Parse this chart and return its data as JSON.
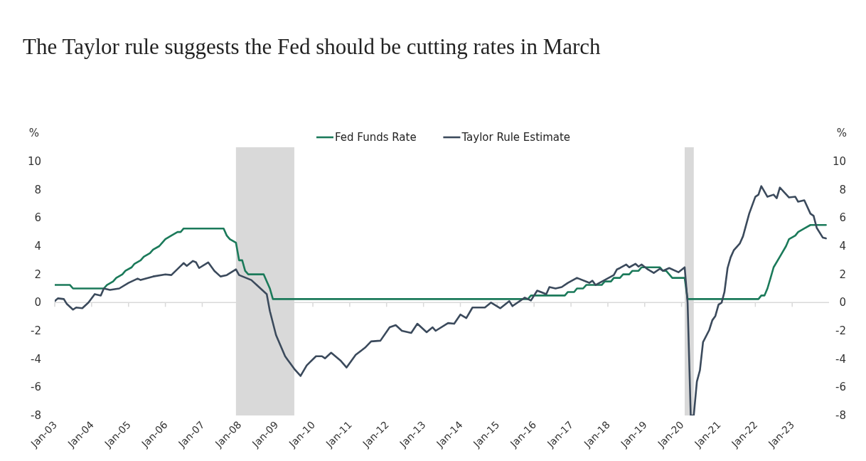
{
  "chart_data": {
    "type": "line",
    "title": "The Taylor rule suggests the Fed should be cutting rates in March",
    "ylabel": "%",
    "y2label": "%",
    "legend": "top",
    "line_style": "solid",
    "marker": "none",
    "grid": false,
    "xlim": [
      "2003-01",
      "2024-01"
    ],
    "xticks": [
      {
        "value": "2003-01",
        "label": "Jan-03"
      },
      {
        "value": "2004-01",
        "label": "Jan-04"
      },
      {
        "value": "2005-01",
        "label": "Jan-05"
      },
      {
        "value": "2006-01",
        "label": "Jan-06"
      },
      {
        "value": "2007-01",
        "label": "Jan-07"
      },
      {
        "value": "2008-01",
        "label": "Jan-08"
      },
      {
        "value": "2009-01",
        "label": "Jan-09"
      },
      {
        "value": "2010-01",
        "label": "Jan-10"
      },
      {
        "value": "2011-01",
        "label": "Jan-11"
      },
      {
        "value": "2012-01",
        "label": "Jan-12"
      },
      {
        "value": "2013-01",
        "label": "Jan-13"
      },
      {
        "value": "2014-01",
        "label": "Jan-14"
      },
      {
        "value": "2015-01",
        "label": "Jan-15"
      },
      {
        "value": "2016-01",
        "label": "Jan-16"
      },
      {
        "value": "2017-01",
        "label": "Jan-17"
      },
      {
        "value": "2018-01",
        "label": "Jan-18"
      },
      {
        "value": "2019-01",
        "label": "Jan-19"
      },
      {
        "value": "2020-01",
        "label": "Jan-20"
      },
      {
        "value": "2021-01",
        "label": "Jan-21"
      },
      {
        "value": "2022-01",
        "label": "Jan-22"
      },
      {
        "value": "2023-01",
        "label": "Jan-23"
      }
    ],
    "ylim": [
      -8,
      10
    ],
    "yticks": [
      -8,
      -6,
      -4,
      -2,
      0,
      2,
      4,
      6,
      8,
      10
    ],
    "ref_lines": [
      {
        "axis": "y",
        "value": 0,
        "color": "#d9d9d9"
      }
    ],
    "y2lim": [
      -8,
      10
    ],
    "y2ticks": [
      -8,
      -6,
      -4,
      -2,
      0,
      2,
      4,
      6,
      8,
      10
    ],
    "bands": [
      {
        "axis": "x",
        "from": "2007-12",
        "to": "2009-07",
        "color": "#d9d9d9"
      },
      {
        "axis": "x",
        "from": "2020-02",
        "to": "2020-05",
        "color": "#d9d9d9"
      }
    ],
    "series": [
      {
        "name": "Fed Funds Rate",
        "color": "#1b7a5a",
        "x": [
          "2003-01",
          "2003-06",
          "2003-07",
          "2004-05",
          "2004-06",
          "2004-08",
          "2004-09",
          "2004-11",
          "2004-12",
          "2005-02",
          "2005-03",
          "2005-05",
          "2005-06",
          "2005-08",
          "2005-09",
          "2005-11",
          "2005-12",
          "2006-01",
          "2006-03",
          "2006-05",
          "2006-06",
          "2006-07",
          "2007-08",
          "2007-09",
          "2007-10",
          "2007-12",
          "2008-01",
          "2008-02",
          "2008-03",
          "2008-04",
          "2008-09",
          "2008-10",
          "2008-11",
          "2008-12",
          "2015-11",
          "2015-12",
          "2016-11",
          "2016-12",
          "2017-02",
          "2017-03",
          "2017-05",
          "2017-06",
          "2017-11",
          "2017-12",
          "2018-02",
          "2018-03",
          "2018-05",
          "2018-06",
          "2018-08",
          "2018-09",
          "2018-11",
          "2018-12",
          "2019-06",
          "2019-07",
          "2019-08",
          "2019-09",
          "2019-10",
          "2020-02",
          "2020-03",
          "2022-02",
          "2022-03",
          "2022-04",
          "2022-05",
          "2022-06",
          "2022-07",
          "2022-09",
          "2022-11",
          "2022-12",
          "2023-02",
          "2023-03",
          "2023-05",
          "2023-07",
          "2023-12"
        ],
        "values": [
          1.25,
          1.25,
          1.0,
          1.0,
          1.25,
          1.5,
          1.75,
          2.0,
          2.25,
          2.5,
          2.75,
          3.0,
          3.25,
          3.5,
          3.75,
          4.0,
          4.25,
          4.5,
          4.75,
          5.0,
          5.0,
          5.25,
          5.25,
          4.75,
          4.5,
          4.25,
          3.0,
          3.0,
          2.25,
          2.0,
          2.0,
          1.5,
          1.0,
          0.25,
          0.25,
          0.5,
          0.5,
          0.75,
          0.75,
          1.0,
          1.0,
          1.25,
          1.25,
          1.5,
          1.5,
          1.75,
          1.75,
          2.0,
          2.0,
          2.25,
          2.25,
          2.5,
          2.5,
          2.25,
          2.25,
          2.0,
          1.75,
          1.75,
          0.25,
          0.25,
          0.5,
          0.5,
          1.0,
          1.75,
          2.5,
          3.25,
          4.0,
          4.5,
          4.75,
          5.0,
          5.25,
          5.5,
          5.5
        ]
      },
      {
        "name": "Taylor Rule Estimate",
        "color": "#3b4a5c",
        "x": [
          "2003-01",
          "2003-02",
          "2003-04",
          "2003-05",
          "2003-07",
          "2003-08",
          "2003-10",
          "2003-12",
          "2004-02",
          "2004-04",
          "2004-05",
          "2004-07",
          "2004-10",
          "2005-01",
          "2005-04",
          "2005-05",
          "2005-09",
          "2006-01",
          "2006-03",
          "2006-07",
          "2006-08",
          "2006-10",
          "2006-11",
          "2006-12",
          "2007-03",
          "2007-05",
          "2007-07",
          "2007-09",
          "2007-12",
          "2008-01",
          "2008-05",
          "2008-07",
          "2008-10",
          "2008-11",
          "2009-01",
          "2009-04",
          "2009-05",
          "2009-07",
          "2009-09",
          "2009-11",
          "2010-02",
          "2010-04",
          "2010-05",
          "2010-07",
          "2010-10",
          "2010-12",
          "2011-03",
          "2011-06",
          "2011-08",
          "2011-11",
          "2012-02",
          "2012-04",
          "2012-06",
          "2012-09",
          "2012-11",
          "2013-02",
          "2013-04",
          "2013-05",
          "2013-09",
          "2013-11",
          "2014-01",
          "2014-03",
          "2014-05",
          "2014-09",
          "2014-11",
          "2015-02",
          "2015-05",
          "2015-06",
          "2015-10",
          "2015-12",
          "2016-02",
          "2016-05",
          "2016-06",
          "2016-08",
          "2016-10",
          "2016-12",
          "2017-03",
          "2017-07",
          "2017-08",
          "2017-09",
          "2017-12",
          "2018-03",
          "2018-04",
          "2018-05",
          "2018-07",
          "2018-08",
          "2018-10",
          "2018-11",
          "2018-12",
          "2019-02",
          "2019-04",
          "2019-06",
          "2019-07",
          "2019-09",
          "2019-12",
          "2020-02",
          "2020-03",
          "2020-04",
          "2020-05",
          "2020-06",
          "2020-07",
          "2020-08",
          "2020-10",
          "2020-11",
          "2020-12",
          "2021-01",
          "2021-02",
          "2021-03",
          "2021-04",
          "2021-05",
          "2021-06",
          "2021-08",
          "2021-09",
          "2021-11",
          "2022-01",
          "2022-02",
          "2022-03",
          "2022-05",
          "2022-07",
          "2022-08",
          "2022-09",
          "2022-12",
          "2023-02",
          "2023-03",
          "2023-05",
          "2023-07",
          "2023-08",
          "2023-09",
          "2023-11",
          "2023-12"
        ],
        "values": [
          0.1,
          0.3,
          0.25,
          -0.1,
          -0.5,
          -0.35,
          -0.4,
          0.0,
          0.6,
          0.5,
          1.0,
          0.9,
          1.0,
          1.4,
          1.7,
          1.6,
          1.85,
          2.0,
          1.95,
          2.8,
          2.6,
          2.95,
          2.85,
          2.45,
          2.85,
          2.25,
          1.85,
          1.95,
          2.35,
          1.95,
          1.6,
          1.2,
          0.6,
          -0.6,
          -2.3,
          -3.8,
          -4.1,
          -4.7,
          -5.2,
          -4.45,
          -3.8,
          -3.8,
          -3.95,
          -3.55,
          -4.1,
          -4.6,
          -3.7,
          -3.2,
          -2.75,
          -2.7,
          -1.75,
          -1.6,
          -2.0,
          -2.15,
          -1.5,
          -2.1,
          -1.75,
          -2.0,
          -1.45,
          -1.5,
          -0.85,
          -1.1,
          -0.35,
          -0.35,
          0.0,
          -0.4,
          0.1,
          -0.25,
          0.35,
          0.15,
          0.85,
          0.6,
          1.1,
          1.0,
          1.1,
          1.4,
          1.75,
          1.4,
          1.55,
          1.25,
          1.6,
          1.95,
          2.35,
          2.45,
          2.7,
          2.5,
          2.75,
          2.55,
          2.7,
          2.35,
          2.1,
          2.4,
          2.25,
          2.45,
          2.15,
          2.5,
          0.0,
          -8,
          -8,
          -5.6,
          -4.8,
          -2.8,
          -1.95,
          -1.25,
          -0.95,
          -0.15,
          0.0,
          0.75,
          2.45,
          3.2,
          3.7,
          4.2,
          4.7,
          6.3,
          7.5,
          7.65,
          8.25,
          7.5,
          7.65,
          7.4,
          8.15,
          7.45,
          7.5,
          7.15,
          7.25,
          6.3,
          6.15,
          5.3,
          4.6,
          4.55
        ]
      }
    ]
  }
}
